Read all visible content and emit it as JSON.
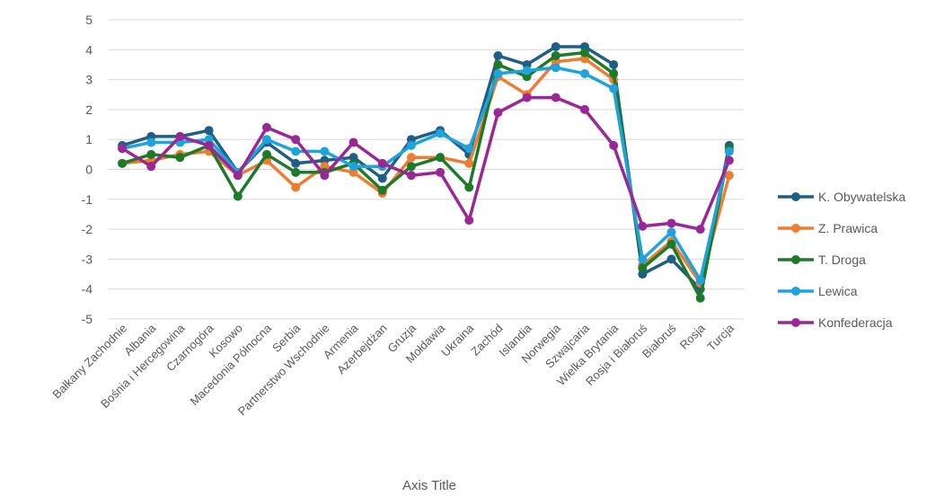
{
  "chart_data": {
    "type": "line",
    "xlabel": "Axis Title",
    "ylabel": "",
    "ylim": [
      -5,
      5
    ],
    "yticks": [
      "5",
      "4",
      "3",
      "2",
      "1",
      "0",
      "-1",
      "-2",
      "-3",
      "-4",
      "-5"
    ],
    "grid": true,
    "legend_position": "right",
    "categories": [
      "Bałkany Zachodnie",
      "Albania",
      "Bośnia i Hercegowina",
      "Czarnogóra",
      "Kosowo",
      "Macedonia Północna",
      "Serbia",
      "Partnerstwo Wschodnie",
      "Armenia",
      "Azerbejdżan",
      "Gruzja",
      "Mołdawia",
      "Ukraina",
      "Zachód",
      "Islandia",
      "Norwegia",
      "Szwajcaria",
      "Wielka Brytania",
      "Rosja i Białoruś",
      "Białoruś",
      "Rosja",
      "Turcja"
    ],
    "series": [
      {
        "name": "K. Obywatelska",
        "color": "#1f5f86",
        "values": [
          0.8,
          1.1,
          1.1,
          1.3,
          -0.1,
          0.9,
          0.2,
          0.3,
          0.4,
          -0.3,
          1.0,
          1.3,
          0.5,
          3.8,
          3.5,
          4.1,
          4.1,
          3.5,
          -3.5,
          -3.0,
          -4.0,
          0.8
        ]
      },
      {
        "name": "Z. Prawica",
        "color": "#ed7d31",
        "values": [
          0.2,
          0.3,
          0.5,
          0.6,
          -0.2,
          0.3,
          -0.6,
          0.1,
          -0.1,
          -0.8,
          0.4,
          0.4,
          0.2,
          3.1,
          2.5,
          3.6,
          3.7,
          3.0,
          -3.2,
          -2.4,
          -3.8,
          -0.2
        ]
      },
      {
        "name": "T. Droga",
        "color": "#1d7a2a",
        "values": [
          0.2,
          0.5,
          0.4,
          0.8,
          -0.9,
          0.5,
          -0.1,
          -0.1,
          0.2,
          -0.7,
          0.1,
          0.4,
          -0.6,
          3.5,
          3.1,
          3.8,
          3.9,
          3.2,
          -3.3,
          -2.5,
          -4.3,
          0.7
        ]
      },
      {
        "name": "Lewica",
        "color": "#1ea3dc",
        "values": [
          0.7,
          0.9,
          0.9,
          1.0,
          -0.1,
          1.0,
          0.6,
          0.6,
          0.1,
          0.1,
          0.8,
          1.2,
          0.7,
          3.2,
          3.3,
          3.4,
          3.2,
          2.7,
          -3.0,
          -2.1,
          -3.7,
          0.6
        ]
      },
      {
        "name": "Konfederacja",
        "color": "#9a2796",
        "values": [
          0.7,
          0.1,
          1.1,
          0.8,
          -0.2,
          1.4,
          1.0,
          -0.2,
          0.9,
          0.2,
          -0.2,
          -0.1,
          -1.7,
          1.9,
          2.4,
          2.4,
          2.0,
          0.8,
          -1.9,
          -1.8,
          -2.0,
          0.3
        ]
      }
    ]
  }
}
